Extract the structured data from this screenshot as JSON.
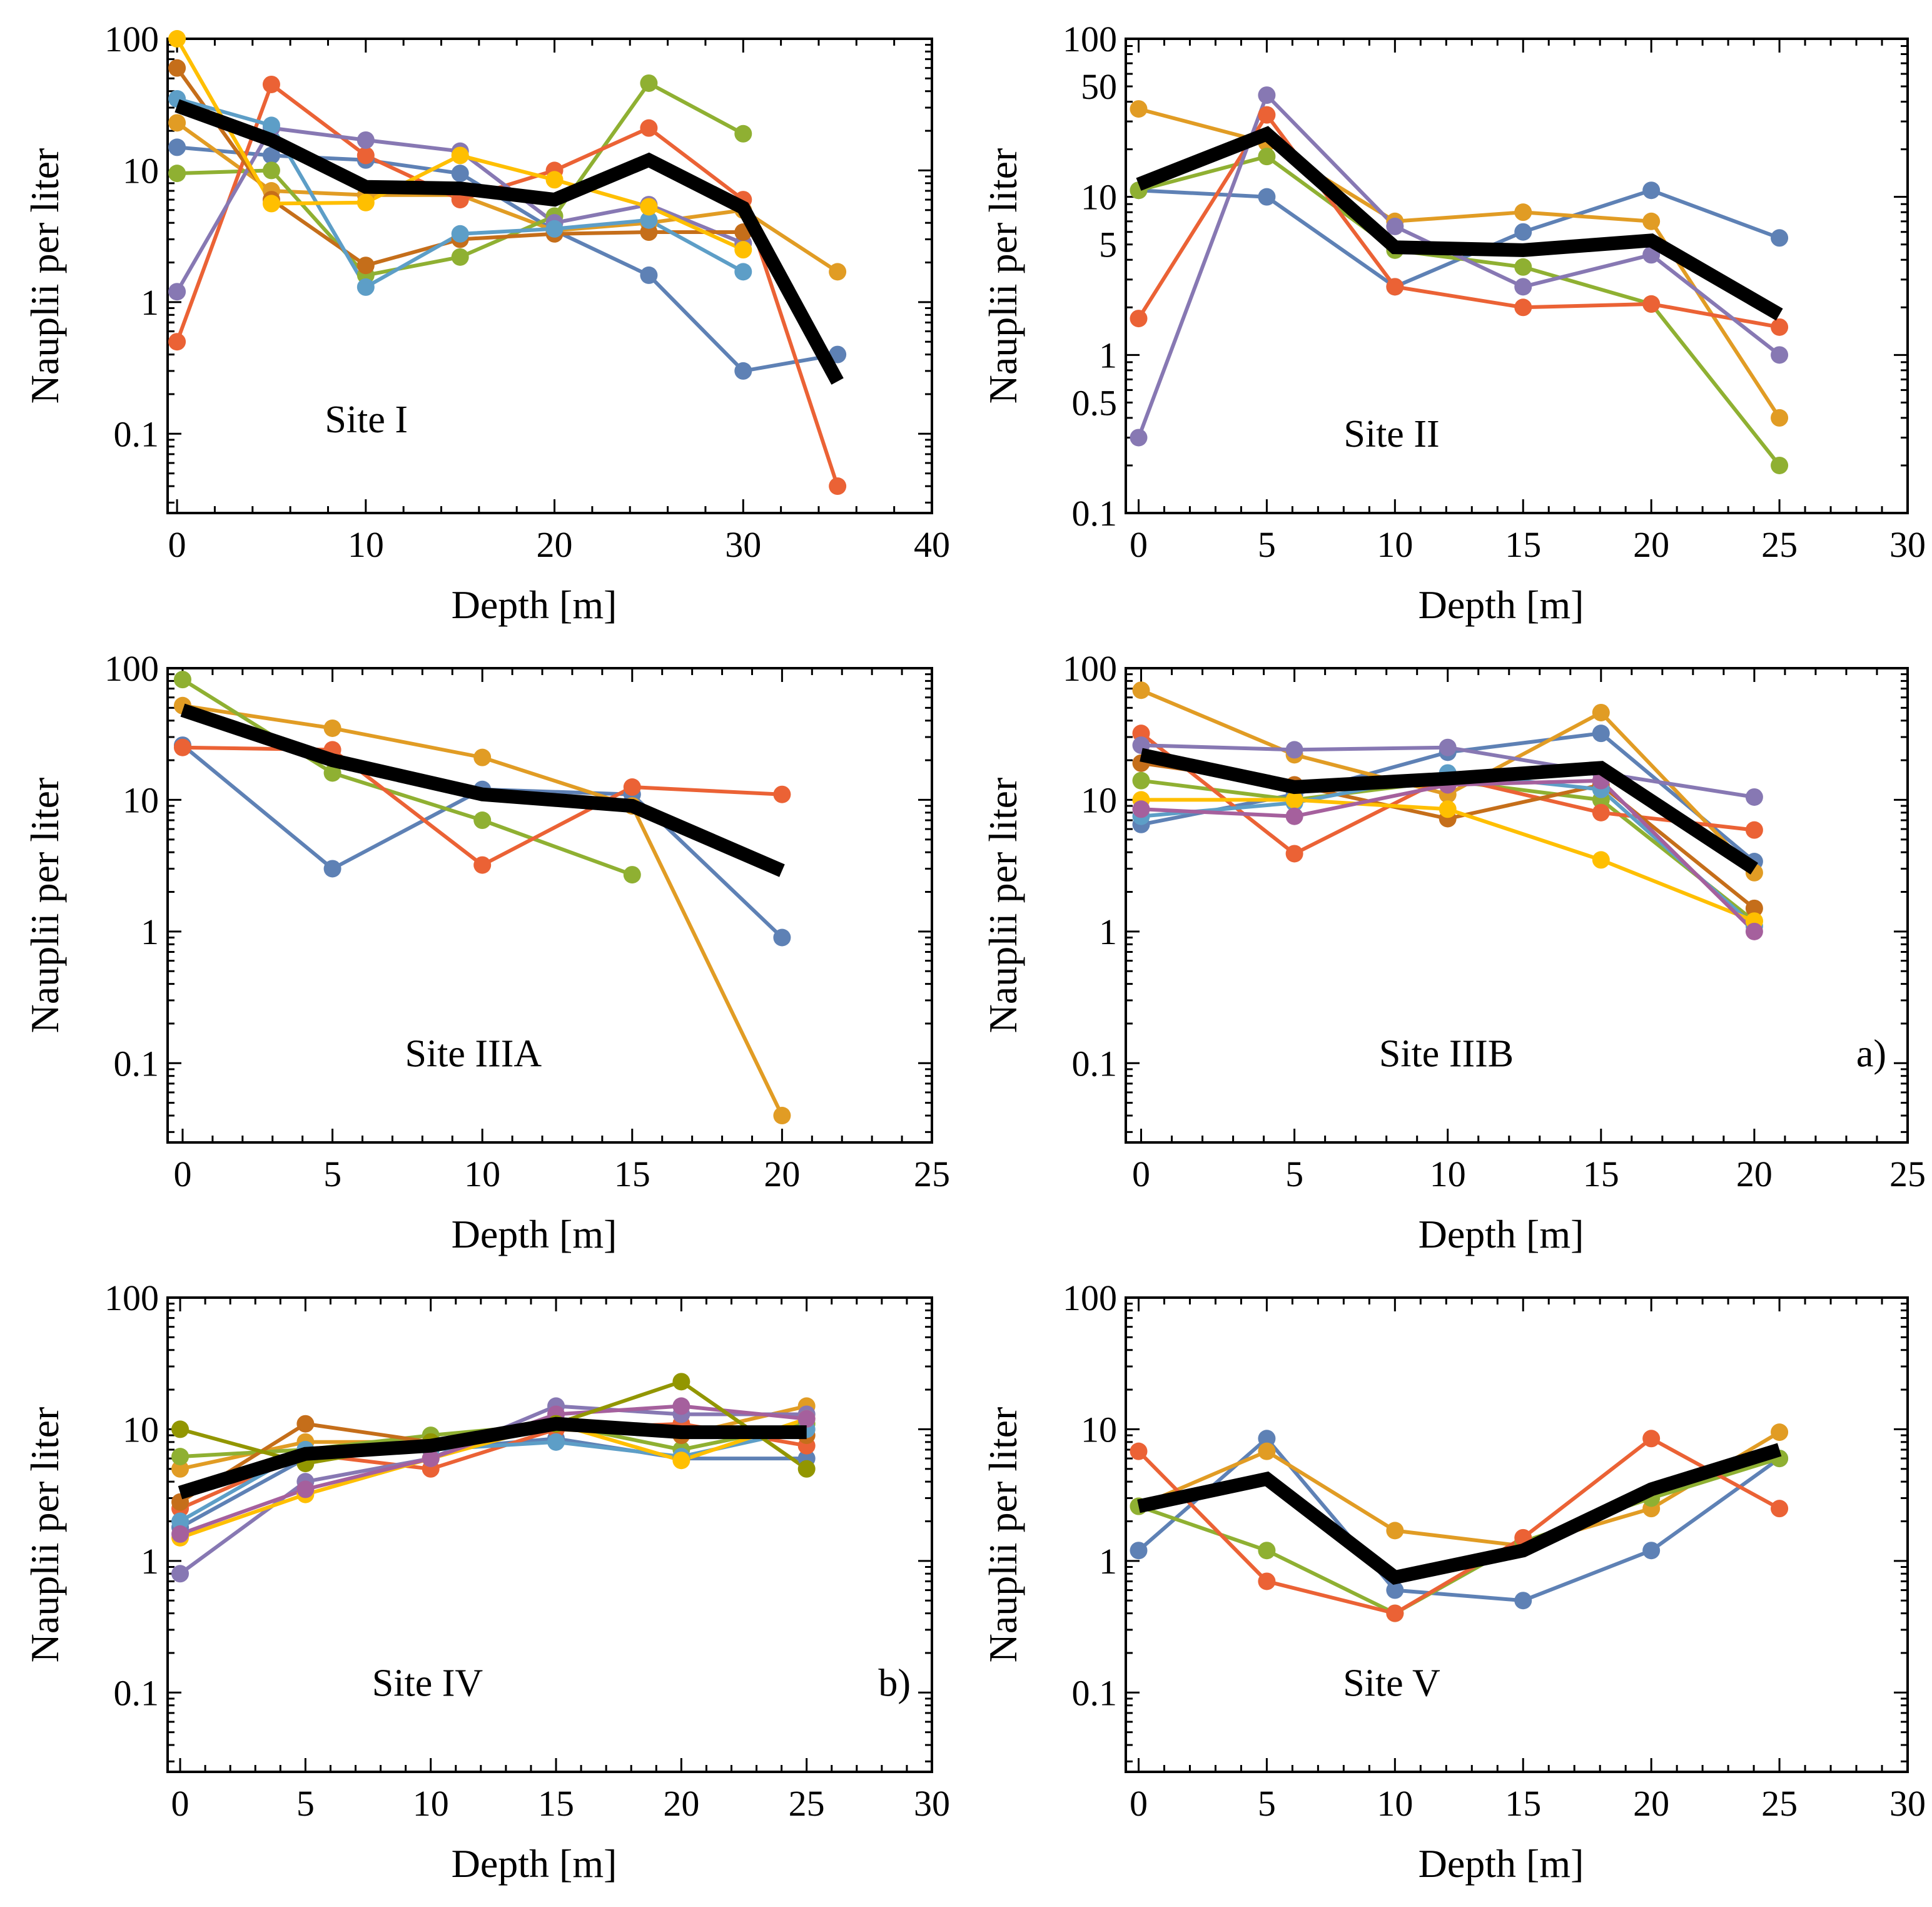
{
  "figure": {
    "xlabel": "Depth  [m]",
    "ylabel": "Nauplii  per liter",
    "colors": {
      "blue": "#5E81B5",
      "orange": "#E19C24",
      "green": "#8FB032",
      "red": "#EB6235",
      "purple": "#8778B3",
      "brown": "#C56E1A",
      "cyan": "#5D9EC7",
      "yellow": "#FFBF00",
      "magenta": "#A5609D",
      "olive": "#929600",
      "mean": "#000000"
    }
  },
  "chart_data": [
    {
      "type": "line",
      "title": "Site I",
      "tag": "",
      "xlabel": "Depth  [m]",
      "ylabel": "Nauplii  per liter",
      "xlim": [
        -0.5,
        40
      ],
      "ylim": [
        0.025,
        100
      ],
      "yscale": "log",
      "xticks": [
        0,
        10,
        20,
        30,
        40
      ],
      "xtick_labels": [
        "0",
        "10",
        "20",
        "30",
        "40"
      ],
      "yticks": [
        0.1,
        1,
        10,
        100
      ],
      "ytick_labels": [
        "0.1",
        "1",
        "10",
        "100"
      ],
      "series": [
        {
          "name": "blue",
          "color": "blue",
          "x": [
            0,
            5,
            10,
            15,
            20,
            25,
            30,
            35
          ],
          "y": [
            15,
            13,
            12,
            9.5,
            3.5,
            1.6,
            0.3,
            0.4
          ]
        },
        {
          "name": "orange",
          "color": "orange",
          "x": [
            0,
            5,
            10,
            15,
            20,
            25,
            30,
            35
          ],
          "y": [
            23,
            7,
            6.5,
            6.5,
            3.5,
            4,
            5,
            1.7
          ]
        },
        {
          "name": "green",
          "color": "green",
          "x": [
            0,
            5,
            10,
            15,
            20,
            25,
            30
          ],
          "y": [
            9.5,
            10,
            1.6,
            2.2,
            4.5,
            46,
            19
          ]
        },
        {
          "name": "red",
          "color": "red",
          "x": [
            0,
            5,
            10,
            15,
            20,
            25,
            30,
            35
          ],
          "y": [
            0.5,
            45,
            13,
            6,
            10,
            21,
            6,
            0.04
          ]
        },
        {
          "name": "purple",
          "color": "purple",
          "x": [
            0,
            5,
            10,
            15,
            20,
            25,
            30
          ],
          "y": [
            1.2,
            21,
            17,
            14,
            4,
            5.5,
            2.8
          ]
        },
        {
          "name": "brown",
          "color": "brown",
          "x": [
            0,
            5,
            10,
            15,
            20,
            25,
            30
          ],
          "y": [
            60,
            6,
            1.9,
            3,
            3.3,
            3.4,
            3.4
          ]
        },
        {
          "name": "cyan",
          "color": "cyan",
          "x": [
            0,
            5,
            10,
            15,
            20,
            25,
            30
          ],
          "y": [
            35,
            22,
            1.3,
            3.3,
            3.6,
            4.2,
            1.7
          ]
        },
        {
          "name": "yellow",
          "color": "yellow",
          "x": [
            0,
            5,
            10,
            15,
            20,
            25,
            30
          ],
          "y": [
            100,
            5.6,
            5.7,
            13,
            8.5,
            5.3,
            2.5
          ]
        }
      ],
      "mean": {
        "name": "mean",
        "x": [
          0,
          5,
          10,
          15,
          20,
          25,
          30,
          35
        ],
        "y": [
          31,
          17,
          7.5,
          7.3,
          6,
          12,
          5.2,
          0.25
        ]
      }
    },
    {
      "type": "line",
      "title": "Site II",
      "tag": "",
      "xlabel": "Depth  [m]",
      "ylabel": "Nauplii  per liter",
      "xlim": [
        -0.5,
        30
      ],
      "ylim": [
        0.1,
        100
      ],
      "yscale": "log",
      "xticks": [
        0,
        5,
        10,
        15,
        20,
        25,
        30
      ],
      "xtick_labels": [
        "0",
        "5",
        "10",
        "15",
        "20",
        "25",
        "30"
      ],
      "yticks": [
        0.1,
        0.5,
        1,
        5,
        10,
        50,
        100
      ],
      "ytick_labels": [
        "0.1",
        "0.5",
        "1",
        "5",
        "10",
        "50",
        "100"
      ],
      "series": [
        {
          "name": "blue",
          "color": "blue",
          "x": [
            0,
            5,
            10,
            15,
            20,
            25
          ],
          "y": [
            11,
            10,
            2.7,
            6,
            11,
            5.5
          ]
        },
        {
          "name": "orange",
          "color": "orange",
          "x": [
            0,
            5,
            10,
            15,
            20,
            25
          ],
          "y": [
            36,
            22,
            7,
            8,
            7,
            0.4
          ]
        },
        {
          "name": "green",
          "color": "green",
          "x": [
            0,
            5,
            10,
            15,
            20,
            25
          ],
          "y": [
            11,
            18,
            4.6,
            3.6,
            2.1,
            0.2
          ]
        },
        {
          "name": "red",
          "color": "red",
          "x": [
            0,
            5,
            10,
            15,
            20,
            25
          ],
          "y": [
            1.7,
            33,
            2.7,
            2,
            2.1,
            1.5
          ]
        },
        {
          "name": "purple",
          "color": "purple",
          "x": [
            0,
            5,
            10,
            15,
            20,
            25
          ],
          "y": [
            0.3,
            44,
            6.5,
            2.7,
            4.3,
            1
          ]
        }
      ],
      "mean": {
        "name": "mean",
        "x": [
          0,
          5,
          10,
          15,
          20,
          25
        ],
        "y": [
          12,
          25,
          4.8,
          4.6,
          5.3,
          1.8
        ]
      }
    },
    {
      "type": "line",
      "title": "Site IIIA",
      "tag": "",
      "xlabel": "Depth  [m]",
      "ylabel": "Nauplii  per liter",
      "xlim": [
        -0.5,
        25
      ],
      "ylim": [
        0.025,
        100
      ],
      "yscale": "log",
      "xticks": [
        0,
        5,
        10,
        15,
        20,
        25
      ],
      "xtick_labels": [
        "0",
        "5",
        "10",
        "15",
        "20",
        "25"
      ],
      "yticks": [
        0.1,
        1,
        10,
        100
      ],
      "ytick_labels": [
        "0.1",
        "1",
        "10",
        "100"
      ],
      "series": [
        {
          "name": "blue",
          "color": "blue",
          "x": [
            0,
            5,
            10,
            15,
            20
          ],
          "y": [
            26,
            3,
            12,
            11,
            0.9
          ]
        },
        {
          "name": "orange",
          "color": "orange",
          "x": [
            0,
            5,
            10,
            15,
            20
          ],
          "y": [
            52,
            35,
            21,
            9,
            0.04
          ]
        },
        {
          "name": "green",
          "color": "green",
          "x": [
            0,
            5,
            10,
            15
          ],
          "y": [
            82,
            16,
            7,
            2.7
          ]
        },
        {
          "name": "red",
          "color": "red",
          "x": [
            0,
            5,
            10,
            15,
            20
          ],
          "y": [
            25,
            24,
            3.2,
            12.5,
            11
          ]
        }
      ],
      "mean": {
        "name": "mean",
        "x": [
          0,
          5,
          10,
          15,
          20
        ],
        "y": [
          48,
          20,
          11,
          9,
          2.9
        ]
      }
    },
    {
      "type": "line",
      "title": "Site IIIB",
      "tag": "a)",
      "xlabel": "Depth  [m]",
      "ylabel": "Nauplii  per liter",
      "xlim": [
        -0.5,
        25
      ],
      "ylim": [
        0.025,
        100
      ],
      "yscale": "log",
      "xticks": [
        0,
        5,
        10,
        15,
        20,
        25
      ],
      "xtick_labels": [
        "0",
        "5",
        "10",
        "15",
        "20",
        "25"
      ],
      "yticks": [
        0.1,
        1,
        10,
        100
      ],
      "ytick_labels": [
        "0.1",
        "1",
        "10",
        "100"
      ],
      "series": [
        {
          "name": "blue",
          "color": "blue",
          "x": [
            0,
            5,
            10,
            15,
            20
          ],
          "y": [
            6.5,
            11,
            23,
            32,
            3.4
          ]
        },
        {
          "name": "orange",
          "color": "orange",
          "x": [
            0,
            5,
            10,
            15,
            20
          ],
          "y": [
            68,
            22,
            11,
            46,
            2.8
          ]
        },
        {
          "name": "green",
          "color": "green",
          "x": [
            0,
            5,
            10,
            15,
            20
          ],
          "y": [
            14,
            10,
            14,
            10,
            1.2
          ]
        },
        {
          "name": "red",
          "color": "red",
          "x": [
            0,
            5,
            10,
            15,
            20
          ],
          "y": [
            32,
            3.9,
            15,
            8,
            5.9
          ]
        },
        {
          "name": "purple",
          "color": "purple",
          "x": [
            0,
            5,
            10,
            15,
            20
          ],
          "y": [
            26,
            24,
            25,
            16,
            10.5
          ]
        },
        {
          "name": "brown",
          "color": "brown",
          "x": [
            0,
            5,
            10,
            15,
            20
          ],
          "y": [
            19,
            13,
            7.2,
            13,
            1.5
          ]
        },
        {
          "name": "cyan",
          "color": "cyan",
          "x": [
            0,
            5,
            10,
            15,
            20
          ],
          "y": [
            7.5,
            9.5,
            16,
            12,
            1.1
          ]
        },
        {
          "name": "yellow",
          "color": "yellow",
          "x": [
            0,
            5,
            10,
            15,
            20
          ],
          "y": [
            10,
            10,
            8.5,
            3.5,
            1.2
          ]
        },
        {
          "name": "magenta",
          "color": "magenta",
          "x": [
            0,
            5,
            10,
            15,
            20
          ],
          "y": [
            8.5,
            7.5,
            13,
            14,
            1
          ]
        }
      ],
      "mean": {
        "name": "mean",
        "x": [
          0,
          5,
          10,
          15,
          20
        ],
        "y": [
          22,
          12.5,
          14.5,
          17.5,
          3
        ]
      }
    },
    {
      "type": "line",
      "title": "Site IV",
      "tag": "b)",
      "xlabel": "Depth  [m]",
      "ylabel": "Nauplii  per liter",
      "xlim": [
        -0.5,
        30
      ],
      "ylim": [
        0.025,
        100
      ],
      "yscale": "log",
      "xticks": [
        0,
        5,
        10,
        15,
        20,
        25,
        30
      ],
      "xtick_labels": [
        "0",
        "5",
        "10",
        "15",
        "20",
        "25",
        "30"
      ],
      "yticks": [
        0.1,
        1,
        10,
        100
      ],
      "ytick_labels": [
        "0.1",
        "1",
        "10",
        "100"
      ],
      "series": [
        {
          "name": "blue",
          "color": "blue",
          "x": [
            0,
            5,
            10,
            15,
            20,
            25
          ],
          "y": [
            1.8,
            6,
            7,
            8.5,
            6,
            6
          ]
        },
        {
          "name": "orange",
          "color": "orange",
          "x": [
            0,
            5,
            10,
            15,
            20,
            25
          ],
          "y": [
            5,
            8,
            8,
            10,
            9,
            15
          ]
        },
        {
          "name": "green",
          "color": "green",
          "x": [
            0,
            5,
            10,
            15,
            20,
            25
          ],
          "y": [
            6.2,
            7,
            9,
            11,
            7,
            11
          ]
        },
        {
          "name": "red",
          "color": "red",
          "x": [
            0,
            5,
            10,
            15,
            20,
            25
          ],
          "y": [
            2.5,
            6.5,
            5,
            10,
            11,
            7.5
          ]
        },
        {
          "name": "purple",
          "color": "purple",
          "x": [
            0,
            5,
            10,
            15,
            20,
            25
          ],
          "y": [
            0.8,
            4,
            6,
            15,
            13,
            13
          ]
        },
        {
          "name": "brown",
          "color": "brown",
          "x": [
            0,
            5,
            10,
            15,
            20,
            25
          ],
          "y": [
            2.8,
            11,
            8,
            11,
            9,
            9
          ]
        },
        {
          "name": "cyan",
          "color": "cyan",
          "x": [
            0,
            5,
            10,
            15,
            20,
            25
          ],
          "y": [
            2,
            7,
            7,
            8,
            6.2,
            10
          ]
        },
        {
          "name": "yellow",
          "color": "yellow",
          "x": [
            0,
            5,
            10,
            15,
            20,
            25
          ],
          "y": [
            1.5,
            3.2,
            6,
            11,
            5.8,
            12
          ]
        },
        {
          "name": "magenta",
          "color": "magenta",
          "x": [
            0,
            5,
            10,
            15,
            20,
            25
          ],
          "y": [
            1.6,
            3.5,
            6,
            13,
            15,
            12
          ]
        },
        {
          "name": "olive",
          "color": "olive",
          "x": [
            0,
            5,
            10,
            15,
            20,
            25
          ],
          "y": [
            10,
            5.5,
            8,
            11,
            23,
            5
          ]
        }
      ],
      "mean": {
        "name": "mean",
        "x": [
          0,
          5,
          10,
          15,
          20,
          25
        ],
        "y": [
          3.3,
          6.5,
          7.5,
          11,
          9.5,
          9.5
        ]
      }
    },
    {
      "type": "line",
      "title": "Site V",
      "tag": "",
      "xlabel": "Depth  [m]",
      "ylabel": "Nauplii  per liter",
      "xlim": [
        -0.5,
        30
      ],
      "ylim": [
        0.025,
        100
      ],
      "yscale": "log",
      "xticks": [
        0,
        5,
        10,
        15,
        20,
        25,
        30
      ],
      "xtick_labels": [
        "0",
        "5",
        "10",
        "15",
        "20",
        "25",
        "30"
      ],
      "yticks": [
        0.1,
        1,
        10,
        100
      ],
      "ytick_labels": [
        "0.1",
        "1",
        "10",
        "100"
      ],
      "series": [
        {
          "name": "blue",
          "color": "blue",
          "x": [
            0,
            5,
            10,
            15,
            20,
            25
          ],
          "y": [
            1.2,
            8.5,
            0.6,
            0.5,
            1.2,
            6
          ]
        },
        {
          "name": "orange",
          "color": "orange",
          "x": [
            0,
            5,
            10,
            15,
            20,
            25
          ],
          "y": [
            2.6,
            6.8,
            1.7,
            1.3,
            2.5,
            9.5
          ]
        },
        {
          "name": "green",
          "color": "green",
          "x": [
            0,
            5,
            10,
            15,
            20,
            25
          ],
          "y": [
            2.6,
            1.2,
            0.4,
            1.4,
            3,
            6
          ]
        },
        {
          "name": "red",
          "color": "red",
          "x": [
            0,
            5,
            10,
            15,
            20,
            25
          ],
          "y": [
            6.8,
            0.7,
            0.4,
            1.5,
            8.5,
            2.5
          ]
        }
      ],
      "mean": {
        "name": "mean",
        "x": [
          0,
          5,
          10,
          15,
          20,
          25
        ],
        "y": [
          2.6,
          4.2,
          0.75,
          1.2,
          3.5,
          7
        ]
      }
    }
  ]
}
